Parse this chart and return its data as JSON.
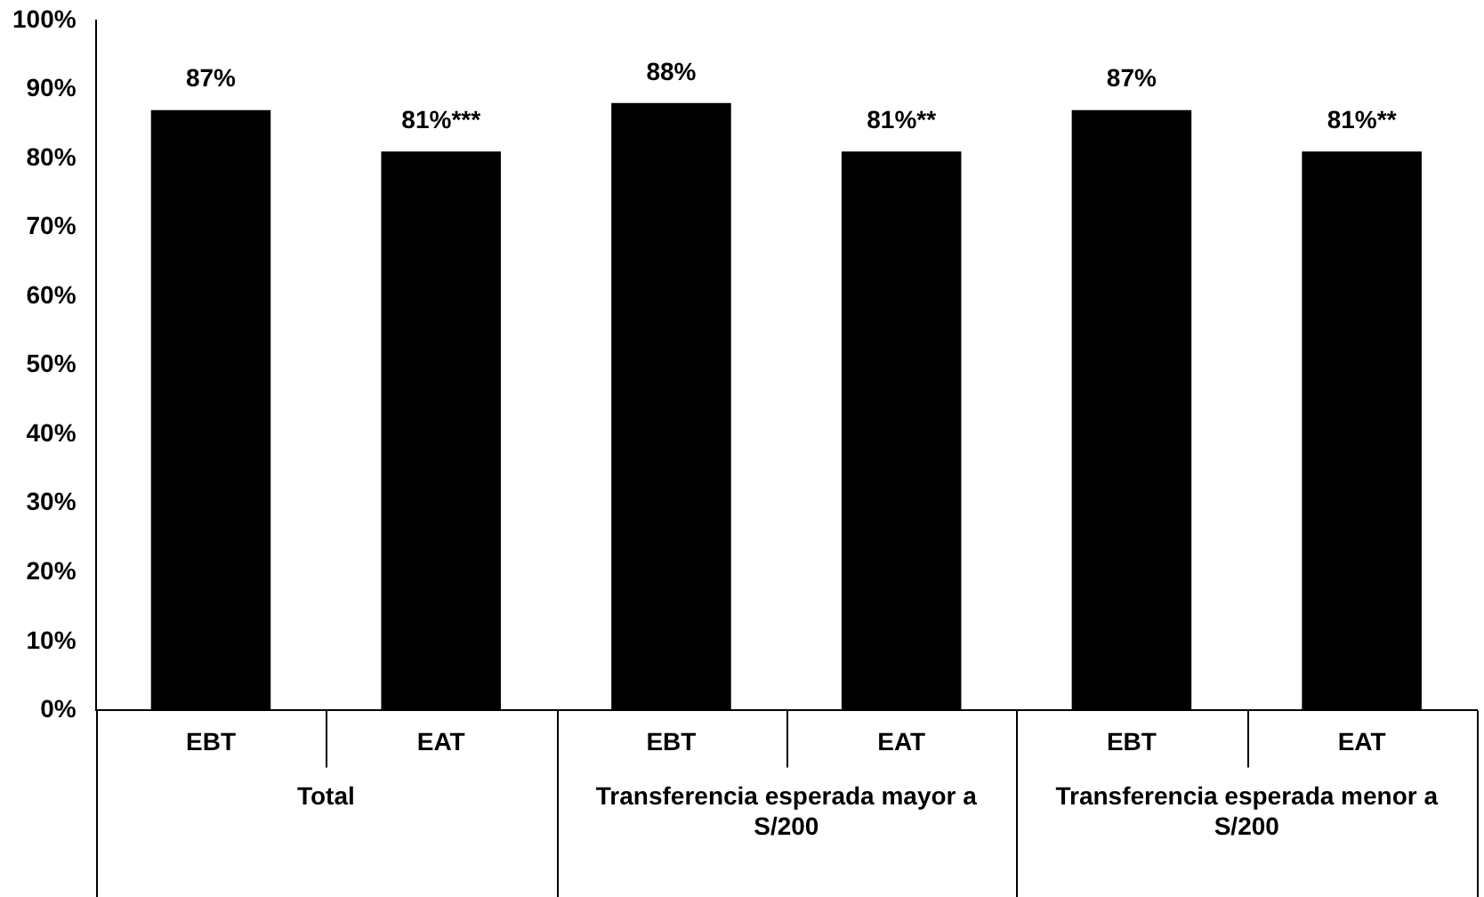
{
  "chart_data": {
    "type": "bar",
    "categories": [
      "EBT",
      "EAT",
      "EBT",
      "EAT",
      "EBT",
      "EAT"
    ],
    "values": [
      87,
      81,
      88,
      81,
      87,
      81
    ],
    "value_labels": [
      "87%",
      "81%***",
      "88%",
      "81%**",
      "87%",
      "81%**"
    ],
    "color": "#000000",
    "ylim": [
      0,
      100
    ],
    "yticks": [
      {
        "value": 0,
        "label": "0%"
      },
      {
        "value": 10,
        "label": "10%"
      },
      {
        "value": 20,
        "label": "20%"
      },
      {
        "value": 30,
        "label": "30%"
      },
      {
        "value": 40,
        "label": "40%"
      },
      {
        "value": 50,
        "label": "50%"
      },
      {
        "value": 60,
        "label": "60%"
      },
      {
        "value": 70,
        "label": "70%"
      },
      {
        "value": 80,
        "label": "80%"
      },
      {
        "value": 90,
        "label": "90%"
      },
      {
        "value": 100,
        "label": "100%"
      }
    ],
    "annotations": [
      "Total",
      "Transferencia esperada mayor a S/200",
      "Transferencia esperada menor a S/200"
    ],
    "grid": false,
    "legend": false
  }
}
